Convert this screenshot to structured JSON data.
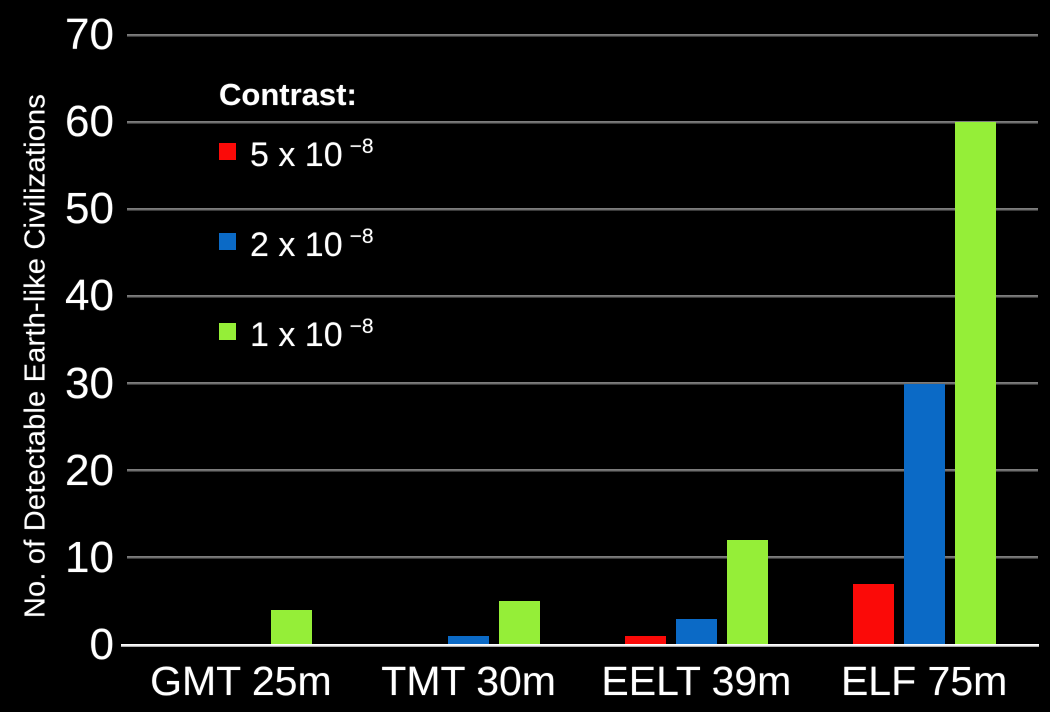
{
  "chart_data": {
    "type": "bar",
    "title": "",
    "ylabel": "No. of Detectable Earth-like Civilizations",
    "xlabel": "",
    "categories": [
      "GMT 25m",
      "TMT 30m",
      "EELT 39m",
      "ELF 75m"
    ],
    "series": [
      {
        "name": "5 x 10⁻⁸",
        "color": "#fb0a08",
        "values": [
          0,
          0,
          1,
          7
        ]
      },
      {
        "name": "2 x 10⁻⁸",
        "color": "#0b6ac6",
        "values": [
          0,
          1,
          3,
          30
        ]
      },
      {
        "name": "1 x 10⁻⁸",
        "color": "#95ee38",
        "values": [
          4,
          5,
          12,
          60
        ]
      }
    ],
    "ylim": [
      0,
      70
    ],
    "yticks": [
      0,
      10,
      20,
      30,
      40,
      50,
      60,
      70
    ],
    "grid": true,
    "legend_position": "upper-left-inside",
    "legend": {
      "title": "Contrast:",
      "items": [
        {
          "base": "5 x 10",
          "exponent": "−8",
          "color": "#fb0a08",
          "swatch": "red-swatch"
        },
        {
          "base": "2 x 10",
          "exponent": "−8",
          "color": "#0b6ac6",
          "swatch": "blue-swatch"
        },
        {
          "base": "1 x 10",
          "exponent": "−8",
          "color": "#95ee38",
          "swatch": "green-swatch"
        }
      ]
    },
    "colors": {
      "background": "#000000",
      "text": "#ffffff",
      "gridline": "#4a4a4a",
      "axis_line": "#e6e6e6"
    }
  }
}
